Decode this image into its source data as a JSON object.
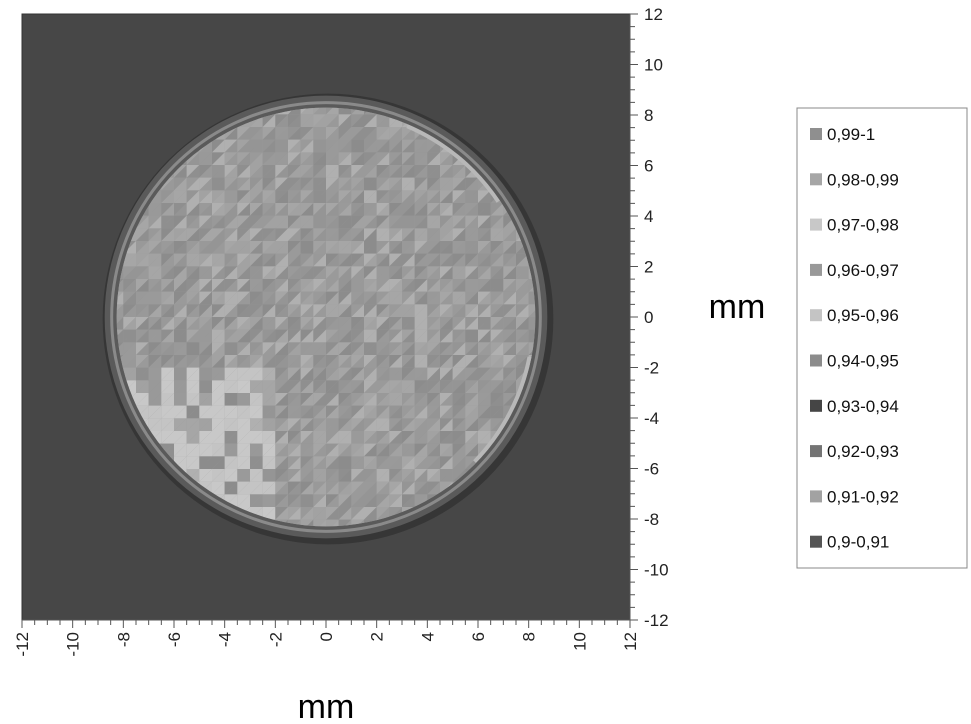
{
  "chart_data": {
    "type": "heatmap",
    "title": "",
    "xlabel": "mm",
    "ylabel": "mm",
    "xlim": [
      -12,
      12
    ],
    "ylim": [
      -12,
      12
    ],
    "x_ticks": [
      "-12",
      "-10",
      "-8",
      "-6",
      "-4",
      "-2",
      "0",
      "2",
      "4",
      "6",
      "8",
      "10",
      "12"
    ],
    "y_ticks": [
      "12",
      "10",
      "8",
      "6",
      "4",
      "2",
      "0",
      "-2",
      "-4",
      "-6",
      "-8",
      "-10",
      "-12"
    ],
    "legend_position": "right",
    "legend": [
      {
        "label": "0,99-1",
        "color": "#8f8f8f"
      },
      {
        "label": "0,98-0,99",
        "color": "#a6a6a6"
      },
      {
        "label": "0,97-0,98",
        "color": "#c8c8c8"
      },
      {
        "label": "0,96-0,97",
        "color": "#999999"
      },
      {
        "label": "0,95-0,96",
        "color": "#c4c4c4"
      },
      {
        "label": "0,94-0,95",
        "color": "#8c8c8c"
      },
      {
        "label": "0,93-0,94",
        "color": "#454545"
      },
      {
        "label": "0,92-0,93",
        "color": "#747474"
      },
      {
        "label": "0,91-0,92",
        "color": "#a2a2a2"
      },
      {
        "label": "0,9-0,91",
        "color": "#555555"
      }
    ],
    "region": {
      "shape": "circle",
      "center": [
        0,
        0
      ],
      "radius": 8.5
    },
    "background_color": "#474747"
  }
}
